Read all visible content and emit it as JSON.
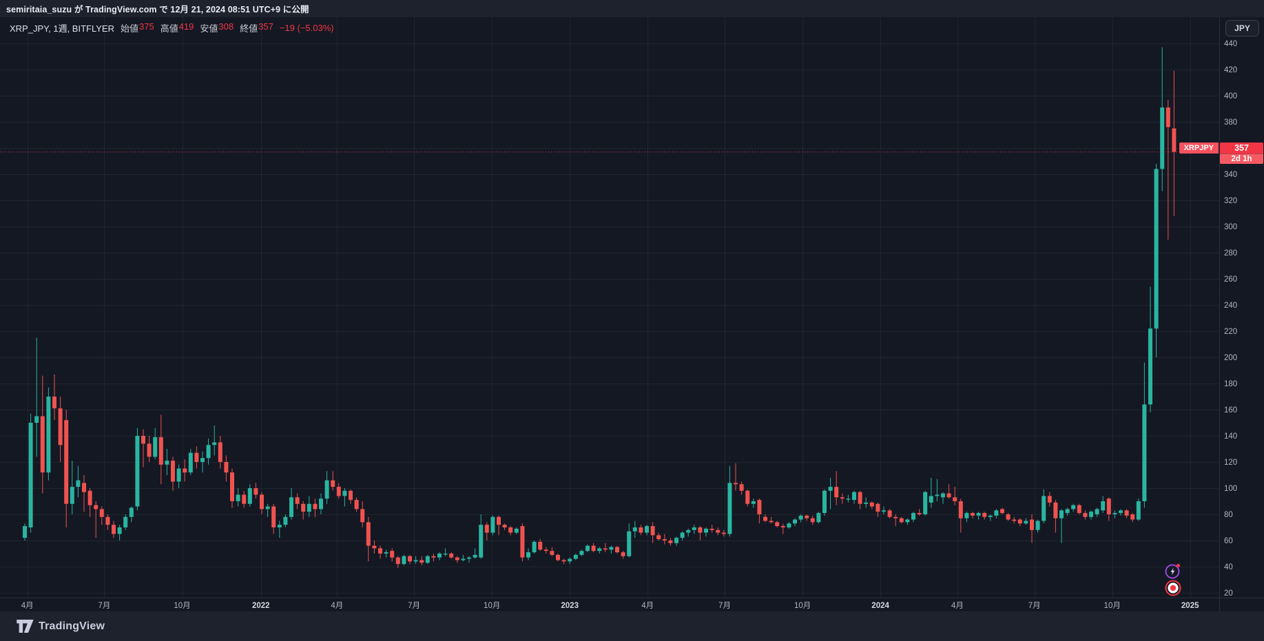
{
  "publish_bar": {
    "text": "semiritaia_suzu が TradingView.com で 12月 21, 2024 08:51 UTC+9 に公開"
  },
  "legend": {
    "symbol_title": "XRP_JPY, 1週, BITFLYER",
    "ohlc": [
      {
        "label": "始値",
        "value": "375"
      },
      {
        "label": "高値",
        "value": "419"
      },
      {
        "label": "安値",
        "value": "308"
      },
      {
        "label": "終値",
        "value": "357"
      }
    ],
    "change": "−19 (−5.03%)"
  },
  "price_axis": {
    "currency_button": "JPY",
    "tick_min": 20,
    "tick_max": 440,
    "tick_step": 20,
    "last_price_label": {
      "symbol": "XRPJPY",
      "price": "357",
      "countdown": "2d 1h"
    }
  },
  "time_axis": {
    "labels": [
      {
        "text": "4月",
        "week": 0.43,
        "year": false
      },
      {
        "text": "7月",
        "week": 13.43,
        "year": false
      },
      {
        "text": "10月",
        "week": 26.57,
        "year": false
      },
      {
        "text": "2022",
        "week": 39.86,
        "year": true
      },
      {
        "text": "4月",
        "week": 52.71,
        "year": false
      },
      {
        "text": "7月",
        "week": 65.71,
        "year": false
      },
      {
        "text": "10月",
        "week": 78.86,
        "year": false
      },
      {
        "text": "2023",
        "week": 92.0,
        "year": true
      },
      {
        "text": "4月",
        "week": 105.14,
        "year": false
      },
      {
        "text": "7月",
        "week": 118.14,
        "year": false
      },
      {
        "text": "10月",
        "week": 131.29,
        "year": false
      },
      {
        "text": "2024",
        "week": 144.43,
        "year": true
      },
      {
        "text": "4月",
        "week": 157.43,
        "year": false
      },
      {
        "text": "7月",
        "week": 170.43,
        "year": false
      },
      {
        "text": "10月",
        "week": 183.57,
        "year": false
      },
      {
        "text": "2025",
        "week": 196.71,
        "year": true
      }
    ]
  },
  "chart_data": {
    "type": "candlestick",
    "title": "XRP_JPY, 1週, BITFLYER",
    "symbol": "XRP_JPY",
    "interval": "1週",
    "exchange": "BITFLYER",
    "ylabel": "JPY",
    "ylim": [
      20,
      458
    ],
    "grid": true,
    "price_line": 357,
    "last_bar": {
      "open": 375,
      "high": 419,
      "low": 308,
      "close": 357,
      "change": -19,
      "change_pct": -5.03
    },
    "ohlc_order": [
      "open",
      "high",
      "low",
      "close"
    ],
    "weekly_candles": [
      [
        62,
        73,
        60,
        71
      ],
      [
        70,
        157,
        66,
        150
      ],
      [
        150,
        215,
        124,
        155
      ],
      [
        155,
        186,
        96,
        112
      ],
      [
        112,
        177,
        106,
        170
      ],
      [
        170,
        187,
        152,
        161
      ],
      [
        161,
        170,
        120,
        133
      ],
      [
        152,
        160,
        70,
        88
      ],
      [
        88,
        121,
        80,
        101
      ],
      [
        101,
        117,
        93,
        106
      ],
      [
        104,
        110,
        82,
        97
      ],
      [
        98,
        100,
        78,
        87
      ],
      [
        87,
        90,
        62,
        84
      ],
      [
        84,
        86,
        72,
        78
      ],
      [
        78,
        80,
        68,
        72
      ],
      [
        72,
        75,
        62,
        65
      ],
      [
        65,
        72,
        60,
        70
      ],
      [
        70,
        80,
        68,
        78
      ],
      [
        78,
        86,
        74,
        85
      ],
      [
        86,
        146,
        83,
        140
      ],
      [
        140,
        145,
        116,
        134
      ],
      [
        134,
        140,
        120,
        124
      ],
      [
        124,
        146,
        122,
        139
      ],
      [
        139,
        156,
        103,
        118
      ],
      [
        118,
        130,
        110,
        121
      ],
      [
        121,
        124,
        98,
        105
      ],
      [
        105,
        118,
        100,
        115
      ],
      [
        115,
        122,
        105,
        112
      ],
      [
        112,
        130,
        110,
        127
      ],
      [
        127,
        132,
        115,
        120
      ],
      [
        120,
        128,
        112,
        123
      ],
      [
        123,
        138,
        118,
        133
      ],
      [
        133,
        148,
        125,
        135
      ],
      [
        135,
        140,
        115,
        120
      ],
      [
        120,
        125,
        105,
        112
      ],
      [
        112,
        115,
        85,
        90
      ],
      [
        90,
        100,
        86,
        95
      ],
      [
        95,
        98,
        85,
        88
      ],
      [
        88,
        103,
        86,
        100
      ],
      [
        100,
        104,
        92,
        95
      ],
      [
        95,
        97,
        80,
        84
      ],
      [
        84,
        88,
        78,
        86
      ],
      [
        86,
        88,
        65,
        70
      ],
      [
        70,
        75,
        62,
        72
      ],
      [
        72,
        80,
        70,
        78
      ],
      [
        78,
        100,
        76,
        93
      ],
      [
        93,
        96,
        84,
        88
      ],
      [
        88,
        90,
        76,
        82
      ],
      [
        82,
        94,
        78,
        88
      ],
      [
        88,
        92,
        78,
        84
      ],
      [
        84,
        96,
        80,
        92
      ],
      [
        92,
        113,
        88,
        106
      ],
      [
        106,
        113,
        98,
        101
      ],
      [
        101,
        104,
        92,
        94
      ],
      [
        94,
        100,
        86,
        98
      ],
      [
        98,
        99,
        88,
        91
      ],
      [
        91,
        93,
        82,
        84
      ],
      [
        84,
        90,
        70,
        74
      ],
      [
        74,
        78,
        44,
        56
      ],
      [
        56,
        60,
        50,
        54
      ],
      [
        54,
        56,
        46,
        50
      ],
      [
        50,
        53,
        47,
        51
      ],
      [
        52,
        54,
        44,
        47
      ],
      [
        47,
        48,
        39,
        42
      ],
      [
        42,
        49,
        41,
        48
      ],
      [
        48,
        49,
        42,
        44
      ],
      [
        44,
        48,
        42,
        45
      ],
      [
        45,
        48,
        41,
        43
      ],
      [
        43,
        49,
        42,
        48
      ],
      [
        48,
        50,
        44,
        47
      ],
      [
        47,
        51,
        45,
        50
      ],
      [
        50,
        54,
        48,
        50
      ],
      [
        50,
        51,
        46,
        47
      ],
      [
        47,
        48,
        43,
        45
      ],
      [
        45,
        49,
        44,
        46
      ],
      [
        46,
        48,
        43,
        47
      ],
      [
        47,
        54,
        46,
        49
      ],
      [
        47,
        80,
        46,
        72
      ],
      [
        72,
        74,
        60,
        66
      ],
      [
        66,
        79,
        64,
        78
      ],
      [
        78,
        79,
        64,
        72
      ],
      [
        72,
        73,
        68,
        70
      ],
      [
        70,
        71,
        64,
        66
      ],
      [
        66,
        70,
        65,
        69
      ],
      [
        71,
        73,
        44,
        47
      ],
      [
        47,
        54,
        45,
        51
      ],
      [
        51,
        60,
        50,
        59
      ],
      [
        59,
        61,
        52,
        53
      ],
      [
        53,
        55,
        50,
        52
      ],
      [
        52,
        55,
        48,
        49
      ],
      [
        49,
        50,
        44,
        45
      ],
      [
        45,
        46,
        42,
        44
      ],
      [
        44,
        47,
        42,
        46
      ],
      [
        46,
        50,
        45,
        49
      ],
      [
        49,
        53,
        48,
        52
      ],
      [
        52,
        57,
        51,
        56
      ],
      [
        56,
        58,
        51,
        52
      ],
      [
        52,
        55,
        50,
        54
      ],
      [
        54,
        58,
        51,
        53
      ],
      [
        53,
        56,
        50,
        55
      ],
      [
        55,
        56,
        50,
        51
      ],
      [
        51,
        52,
        46,
        48
      ],
      [
        48,
        73,
        47,
        67
      ],
      [
        67,
        75,
        62,
        70
      ],
      [
        70,
        72,
        64,
        66
      ],
      [
        66,
        72,
        64,
        71
      ],
      [
        71,
        74,
        58,
        64
      ],
      [
        64,
        66,
        60,
        61
      ],
      [
        61,
        65,
        57,
        60
      ],
      [
        60,
        62,
        56,
        58
      ],
      [
        58,
        63,
        56,
        62
      ],
      [
        62,
        67,
        60,
        66
      ],
      [
        66,
        69,
        63,
        68
      ],
      [
        68,
        72,
        65,
        70
      ],
      [
        70,
        71,
        60,
        66
      ],
      [
        66,
        70,
        63,
        69
      ],
      [
        69,
        72,
        66,
        68
      ],
      [
        68,
        70,
        64,
        66
      ],
      [
        66,
        68,
        63,
        65
      ],
      [
        65,
        117,
        63,
        104
      ],
      [
        104,
        119,
        98,
        103
      ],
      [
        103,
        105,
        95,
        98
      ],
      [
        98,
        99,
        86,
        88
      ],
      [
        88,
        92,
        85,
        90
      ],
      [
        91,
        92,
        73,
        80
      ],
      [
        78,
        80,
        74,
        75
      ],
      [
        75,
        78,
        73,
        74
      ],
      [
        74,
        75,
        70,
        71
      ],
      [
        71,
        73,
        65,
        70
      ],
      [
        70,
        74,
        69,
        73
      ],
      [
        73,
        77,
        71,
        76
      ],
      [
        76,
        80,
        74,
        79
      ],
      [
        79,
        80,
        75,
        77
      ],
      [
        77,
        79,
        72,
        74
      ],
      [
        74,
        82,
        73,
        81
      ],
      [
        81,
        99,
        79,
        98
      ],
      [
        98,
        108,
        84,
        101
      ],
      [
        101,
        113,
        87,
        93
      ],
      [
        93,
        96,
        88,
        92
      ],
      [
        92,
        95,
        89,
        92
      ],
      [
        91,
        98,
        88,
        97
      ],
      [
        97,
        98,
        84,
        88
      ],
      [
        88,
        93,
        85,
        89
      ],
      [
        89,
        90,
        84,
        86
      ],
      [
        88,
        89,
        78,
        82
      ],
      [
        82,
        86,
        80,
        83
      ],
      [
        83,
        84,
        77,
        78
      ],
      [
        78,
        80,
        71,
        77
      ],
      [
        77,
        78,
        73,
        74
      ],
      [
        74,
        77,
        72,
        76
      ],
      [
        76,
        82,
        74,
        81
      ],
      [
        81,
        84,
        79,
        80
      ],
      [
        80,
        98,
        79,
        97
      ],
      [
        89,
        108,
        85,
        94
      ],
      [
        94,
        107,
        90,
        95
      ],
      [
        93,
        97,
        88,
        96
      ],
      [
        96,
        103,
        92,
        93
      ],
      [
        93,
        101,
        87,
        90
      ],
      [
        90,
        92,
        66,
        77
      ],
      [
        77,
        82,
        74,
        81
      ],
      [
        81,
        82,
        77,
        79
      ],
      [
        79,
        82,
        76,
        81
      ],
      [
        81,
        82,
        76,
        78
      ],
      [
        78,
        80,
        75,
        79
      ],
      [
        79,
        84,
        77,
        83
      ],
      [
        84,
        85,
        80,
        81
      ],
      [
        80,
        81,
        75,
        76
      ],
      [
        76,
        78,
        73,
        75
      ],
      [
        76,
        77,
        71,
        73
      ],
      [
        73,
        77,
        72,
        75
      ],
      [
        76,
        80,
        58,
        68
      ],
      [
        68,
        76,
        66,
        75
      ],
      [
        75,
        99,
        73,
        94
      ],
      [
        94,
        97,
        86,
        89
      ],
      [
        89,
        91,
        66,
        77
      ],
      [
        77,
        84,
        58,
        83
      ],
      [
        81,
        85,
        79,
        84
      ],
      [
        84,
        88,
        82,
        87
      ],
      [
        87,
        88,
        80,
        81
      ],
      [
        81,
        83,
        76,
        78
      ],
      [
        78,
        83,
        76,
        82
      ],
      [
        80,
        85,
        78,
        84
      ],
      [
        83,
        94,
        81,
        90
      ],
      [
        92,
        93,
        75,
        80
      ],
      [
        80,
        83,
        77,
        81
      ],
      [
        81,
        84,
        79,
        83
      ],
      [
        83,
        84,
        77,
        79
      ],
      [
        80,
        81,
        74,
        76
      ],
      [
        76,
        92,
        75,
        90
      ],
      [
        90,
        196,
        85,
        164
      ],
      [
        164,
        254,
        158,
        222
      ],
      [
        222,
        348,
        200,
        344
      ],
      [
        344,
        437,
        327,
        391
      ],
      [
        391,
        397,
        290,
        376
      ],
      [
        375,
        419,
        308,
        357
      ]
    ]
  },
  "colors": {
    "up": "#2ab5a0",
    "down": "#ef5350",
    "accent_red": "#f23645",
    "tag_red": "#f7525f",
    "axis_text": "#b2b5be",
    "year_text": "#d4d7de",
    "grid": "rgba(255,255,255,0.055)",
    "background": "#141823"
  },
  "floating_buttons": {
    "boost": {
      "name": "boost-lightning",
      "ring": "#a14df0",
      "dot": "#f23645"
    },
    "record": {
      "name": "record",
      "ring": "#f23645"
    }
  },
  "footer": {
    "brand": "TradingView"
  }
}
